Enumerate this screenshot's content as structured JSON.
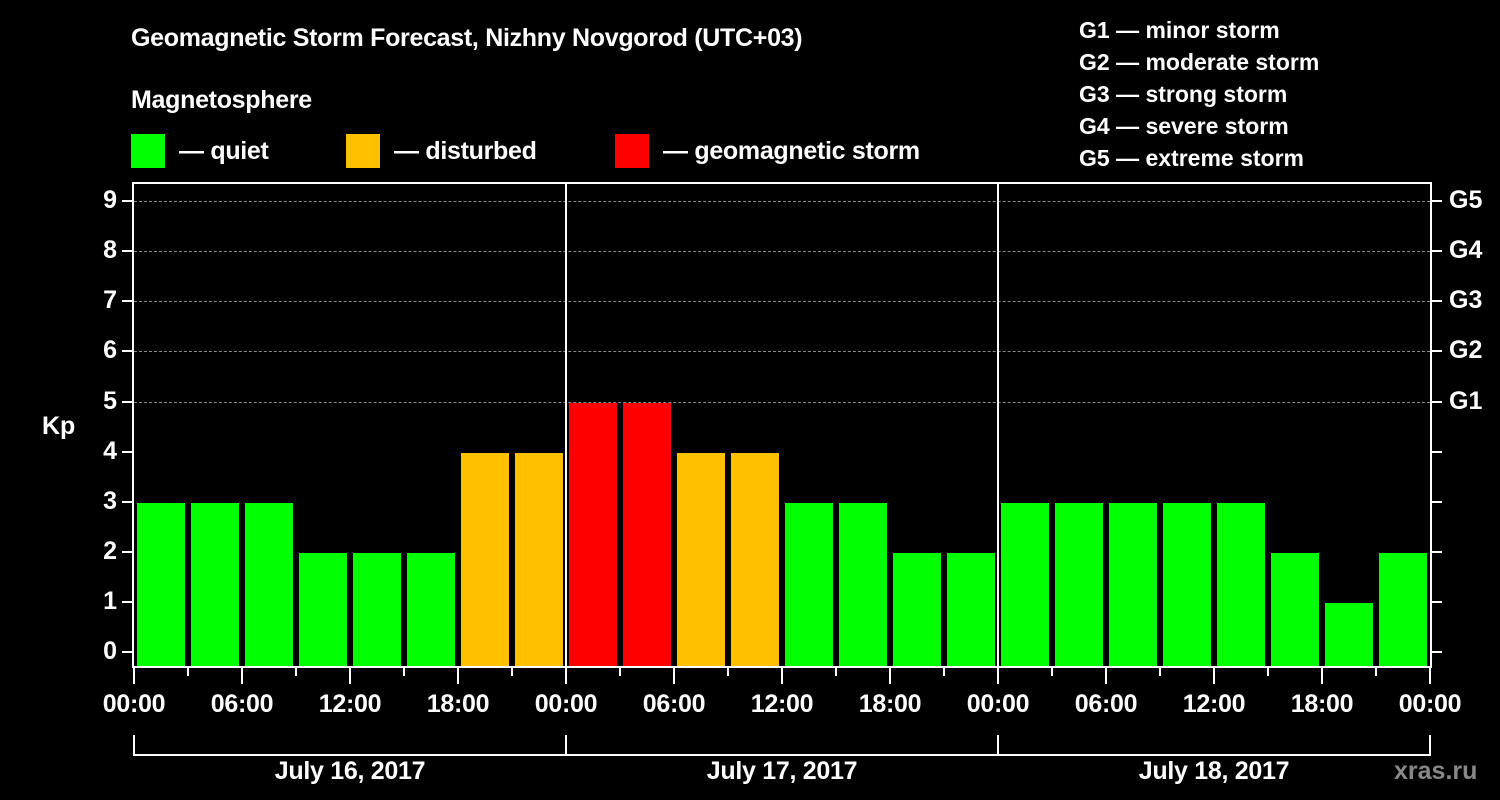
{
  "header": {
    "title": "Geomagnetic Storm Forecast, Nizhny Novgorod (UTC+03)",
    "subtitle": "Magnetosphere"
  },
  "legend": [
    {
      "label": "— quiet",
      "color": "#00ff00"
    },
    {
      "label": "— disturbed",
      "color": "#ffc000"
    },
    {
      "label": "— geomagnetic storm",
      "color": "#ff0000"
    }
  ],
  "g_scale": [
    "G1 — minor storm",
    "G2 — moderate storm",
    "G3 — strong storm",
    "G4 — severe storm",
    "G5 — extreme storm"
  ],
  "colors": {
    "quiet": "#00ff00",
    "disturbed": "#ffc000",
    "storm": "#ff0000",
    "background": "#000000",
    "grid": "#888888"
  },
  "credit": "xras.ru",
  "chart_data": {
    "type": "bar",
    "title": "Geomagnetic Storm Forecast, Nizhny Novgorod (UTC+03)",
    "ylabel": "Kp",
    "xlabel": "",
    "ylim": [
      0,
      9
    ],
    "yticks": [
      "0",
      "1",
      "2",
      "3",
      "4",
      "5",
      "6",
      "7",
      "8",
      "9"
    ],
    "right_axis_labels": [
      {
        "kp": 5,
        "label": "G1"
      },
      {
        "kp": 6,
        "label": "G2"
      },
      {
        "kp": 7,
        "label": "G3"
      },
      {
        "kp": 8,
        "label": "G4"
      },
      {
        "kp": 9,
        "label": "G5"
      }
    ],
    "grid": "dashed horizontal lines at Kp 5-9",
    "xtick_labels": [
      "00:00",
      "06:00",
      "12:00",
      "18:00",
      "00:00",
      "06:00",
      "12:00",
      "18:00",
      "00:00",
      "06:00",
      "12:00",
      "18:00",
      "00:00"
    ],
    "dates": [
      "July 16, 2017",
      "July 17, 2017",
      "July 18, 2017"
    ],
    "interval_hours": 3,
    "categories": [
      "Jul 16 00-03",
      "Jul 16 03-06",
      "Jul 16 06-09",
      "Jul 16 09-12",
      "Jul 16 12-15",
      "Jul 16 15-18",
      "Jul 16 18-21",
      "Jul 16 21-24",
      "Jul 17 00-03",
      "Jul 17 03-06",
      "Jul 17 06-09",
      "Jul 17 09-12",
      "Jul 17 12-15",
      "Jul 17 15-18",
      "Jul 17 18-21",
      "Jul 17 21-24",
      "Jul 18 00-03",
      "Jul 18 03-06",
      "Jul 18 06-09",
      "Jul 18 09-12",
      "Jul 18 12-15",
      "Jul 18 15-18",
      "Jul 18 18-21",
      "Jul 18 21-24"
    ],
    "values": [
      3,
      3,
      3,
      2,
      2,
      2,
      4,
      4,
      5,
      5,
      4,
      4,
      3,
      3,
      2,
      2,
      3,
      3,
      3,
      3,
      3,
      2,
      1,
      2
    ],
    "bar_status": [
      "quiet",
      "quiet",
      "quiet",
      "quiet",
      "quiet",
      "quiet",
      "disturbed",
      "disturbed",
      "storm",
      "storm",
      "disturbed",
      "disturbed",
      "quiet",
      "quiet",
      "quiet",
      "quiet",
      "quiet",
      "quiet",
      "quiet",
      "quiet",
      "quiet",
      "quiet",
      "quiet",
      "quiet"
    ],
    "legend": [
      "quiet",
      "disturbed",
      "geomagnetic storm"
    ]
  }
}
